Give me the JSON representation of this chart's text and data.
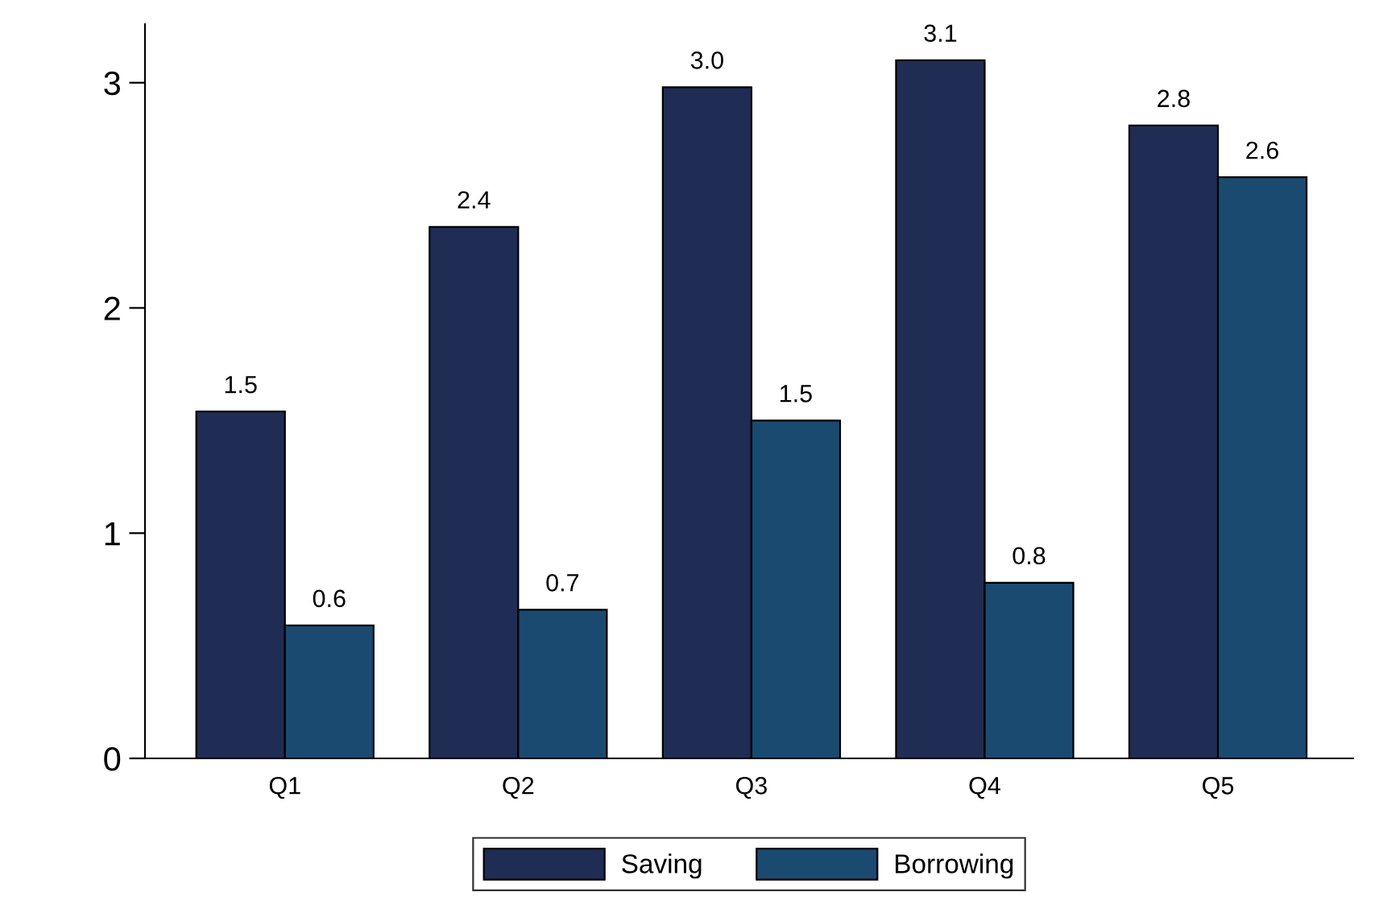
{
  "chart_data": {
    "type": "bar",
    "categories": [
      "Q1",
      "Q2",
      "Q3",
      "Q4",
      "Q5"
    ],
    "series": [
      {
        "name": "Saving",
        "color": "#1f2d55",
        "values": [
          1.54,
          2.36,
          2.98,
          3.1,
          2.81
        ],
        "value_labels": [
          "1.5",
          "2.4",
          "3.0",
          "3.1",
          "2.8"
        ]
      },
      {
        "name": "Borrowing",
        "color": "#1b4a70",
        "values": [
          0.59,
          0.66,
          1.5,
          0.78,
          2.58
        ],
        "value_labels": [
          "0.6",
          "0.7",
          "1.5",
          "0.8",
          "2.6"
        ]
      }
    ],
    "ylim": [
      0,
      3.26
    ],
    "yticks": [
      0,
      1,
      2,
      3
    ],
    "grid": false,
    "legend": "bottom"
  }
}
